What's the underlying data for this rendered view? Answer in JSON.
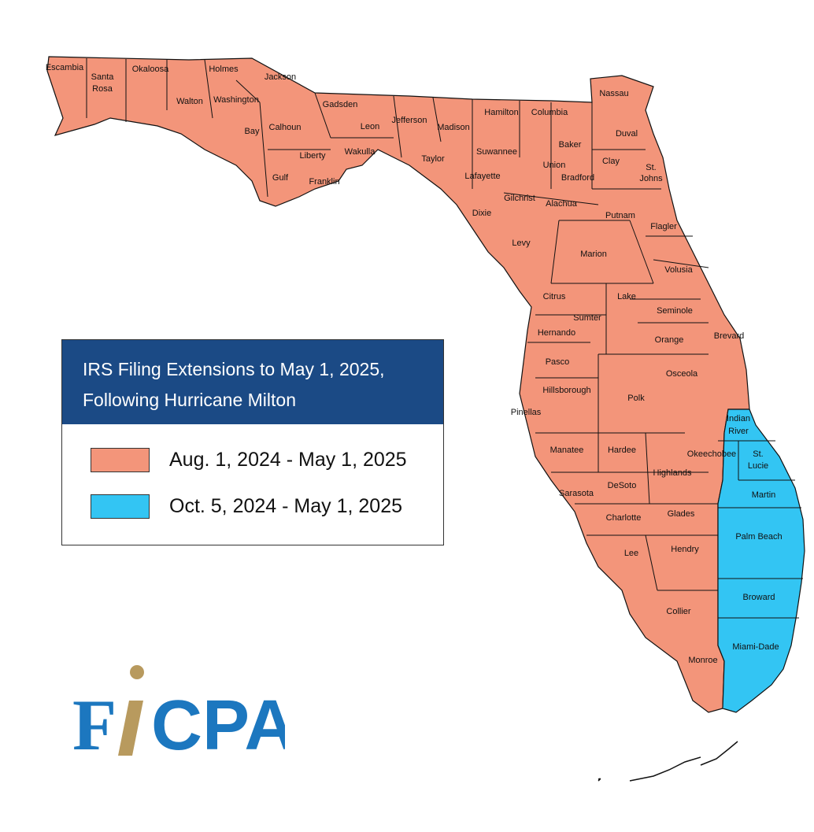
{
  "legend": {
    "title_line1": "IRS Filing Extensions to May 1, 2025,",
    "title_line2": "Following Hurricane Milton",
    "items": [
      {
        "label": "Aug. 1, 2024 - May 1, 2025",
        "color": "#f3957a"
      },
      {
        "label": "Oct. 5, 2024 - May 1, 2025",
        "color": "#33c5f3"
      }
    ]
  },
  "colors": {
    "period_1": "#f3957a",
    "period_2": "#33c5f3",
    "legend_header": "#1b4a85",
    "logo_blue": "#1c77bf",
    "logo_gold": "#b89a5e"
  },
  "logo": {
    "text": "FICPA"
  },
  "counties_period_1": [
    "Escambia",
    "Santa Rosa",
    "Okaloosa",
    "Walton",
    "Holmes",
    "Washington",
    "Jackson",
    "Bay",
    "Calhoun",
    "Gadsden",
    "Liberty",
    "Gulf",
    "Franklin",
    "Wakulla",
    "Leon",
    "Jefferson",
    "Madison",
    "Taylor",
    "Hamilton",
    "Columbia",
    "Suwannee",
    "Lafayette",
    "Dixie",
    "Gilchrist",
    "Union",
    "Bradford",
    "Baker",
    "Nassau",
    "Duval",
    "Clay",
    "St. Johns",
    "Putnam",
    "Alachua",
    "Levy",
    "Marion",
    "Flagler",
    "Volusia",
    "Citrus",
    "Lake",
    "Sumter",
    "Seminole",
    "Hernando",
    "Orange",
    "Brevard",
    "Pasco",
    "Hillsborough",
    "Pinellas",
    "Polk",
    "Osceola",
    "Manatee",
    "Hardee",
    "Highlands",
    "Okeechobee",
    "Sarasota",
    "DeSoto",
    "Charlotte",
    "Glades",
    "Lee",
    "Hendry",
    "Collier",
    "Monroe"
  ],
  "counties_period_2": [
    "Indian River",
    "St. Lucie",
    "Martin",
    "Palm Beach",
    "Broward",
    "Miami-Dade"
  ]
}
